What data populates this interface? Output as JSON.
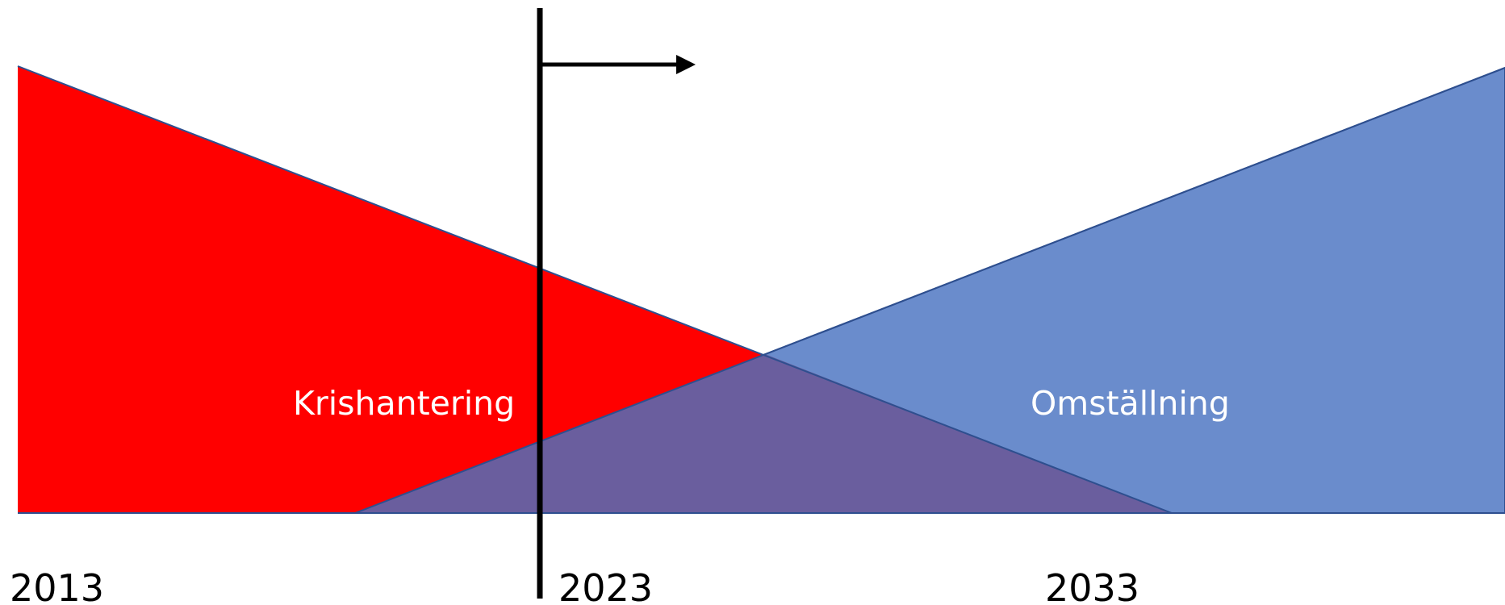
{
  "diagram": {
    "regions": [
      {
        "label": "Krishantering",
        "color": "#ff0000"
      },
      {
        "label": "Omställning",
        "color": "#6a8ccc"
      }
    ],
    "overlap_color": "#6a5e9e",
    "marker_color": "#000000",
    "years": [
      "2013",
      "2023",
      "2033"
    ]
  }
}
